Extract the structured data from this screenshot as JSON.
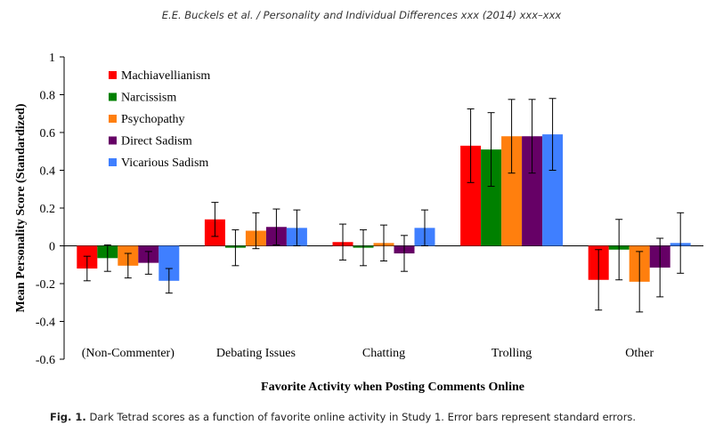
{
  "header": "E.E. Buckels et al. / Personality and Individual Differences xxx (2014) xxx–xxx",
  "caption": {
    "label": "Fig. 1.",
    "text": "Dark Tetrad scores as a function of favorite online activity in Study 1. Error bars represent standard errors."
  },
  "chart_data": {
    "type": "bar",
    "title": "",
    "xlabel": "Favorite Activity when Posting Comments Online",
    "ylabel": "Mean Personality Score (Standardized)",
    "ylim": [
      -0.6,
      1
    ],
    "yticks": [
      -0.6,
      -0.4,
      -0.2,
      0,
      0.2,
      0.4,
      0.6,
      0.8,
      1
    ],
    "ytick_labels": [
      "-0.6",
      "-0.4",
      "-0.2",
      "0",
      "0.2",
      "0.4",
      "0.6",
      "0.8",
      "1"
    ],
    "categories": [
      "(Non-Commenter)",
      "Debating Issues",
      "Chatting",
      "Trolling",
      "Other"
    ],
    "legend_position": "top-left",
    "grid": false,
    "error_bars": "standard errors",
    "series": [
      {
        "name": "Machiavellianism",
        "color": "#ff0000",
        "values": [
          -0.12,
          0.14,
          0.02,
          0.53,
          -0.18
        ],
        "errors": [
          0.065,
          0.09,
          0.095,
          0.195,
          0.16
        ]
      },
      {
        "name": "Narcissism",
        "color": "#008000",
        "values": [
          -0.065,
          -0.01,
          -0.01,
          0.51,
          -0.02
        ],
        "errors": [
          0.07,
          0.095,
          0.095,
          0.195,
          0.16
        ]
      },
      {
        "name": "Psychopathy",
        "color": "#ff7f0e",
        "values": [
          -0.105,
          0.08,
          0.015,
          0.58,
          -0.19
        ],
        "errors": [
          0.065,
          0.095,
          0.095,
          0.195,
          0.16
        ]
      },
      {
        "name": "Direct Sadism",
        "color": "#660066",
        "values": [
          -0.09,
          0.1,
          -0.04,
          0.58,
          -0.115
        ],
        "errors": [
          0.06,
          0.095,
          0.095,
          0.195,
          0.155
        ]
      },
      {
        "name": "Vicarious Sadism",
        "color": "#3f7fff",
        "values": [
          -0.185,
          0.095,
          0.095,
          0.59,
          0.015
        ],
        "errors": [
          0.065,
          0.095,
          0.095,
          0.19,
          0.16
        ]
      }
    ]
  }
}
